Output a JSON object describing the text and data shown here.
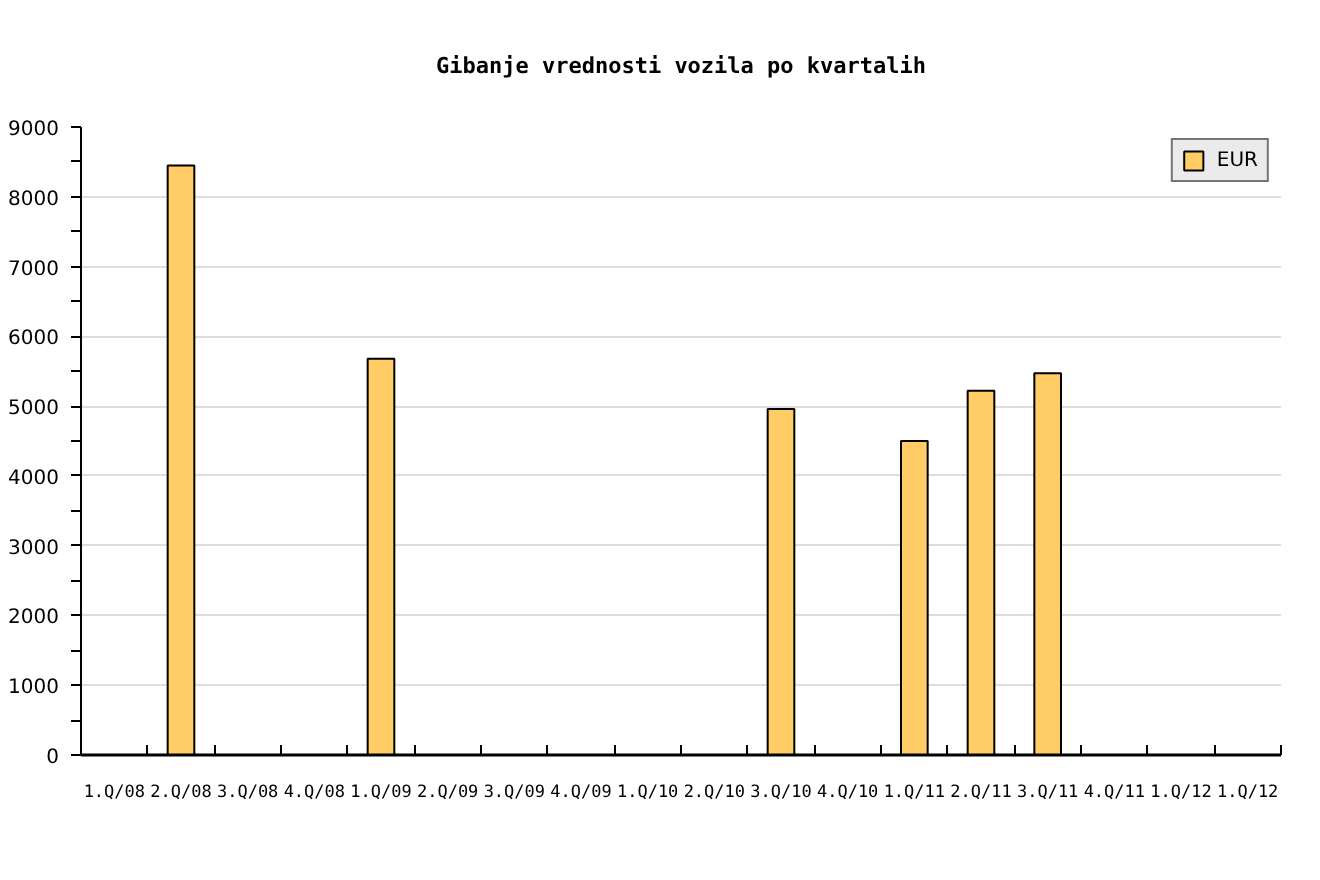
{
  "chart_data": {
    "type": "bar",
    "title": "Gibanje vrednosti vozila po kvartalih",
    "categories": [
      "1.Q/08",
      "2.Q/08",
      "3.Q/08",
      "4.Q/08",
      "1.Q/09",
      "2.Q/09",
      "3.Q/09",
      "4.Q/09",
      "1.Q/10",
      "2.Q/10",
      "3.Q/10",
      "4.Q/10",
      "1.Q/11",
      "2.Q/11",
      "3.Q/11",
      "4.Q/11",
      "1.Q/12",
      "1.Q/12"
    ],
    "series": [
      {
        "name": "EUR",
        "color": "#ffcc66",
        "values": [
          null,
          8450,
          null,
          null,
          5680,
          null,
          null,
          null,
          null,
          null,
          4960,
          null,
          4500,
          5220,
          5470,
          null,
          null,
          null
        ]
      }
    ],
    "ylim": [
      0,
      9000
    ],
    "yticks": [
      0,
      1000,
      2000,
      3000,
      4000,
      5000,
      6000,
      7000,
      8000,
      9000
    ],
    "grid": "y",
    "legend": "top right"
  }
}
